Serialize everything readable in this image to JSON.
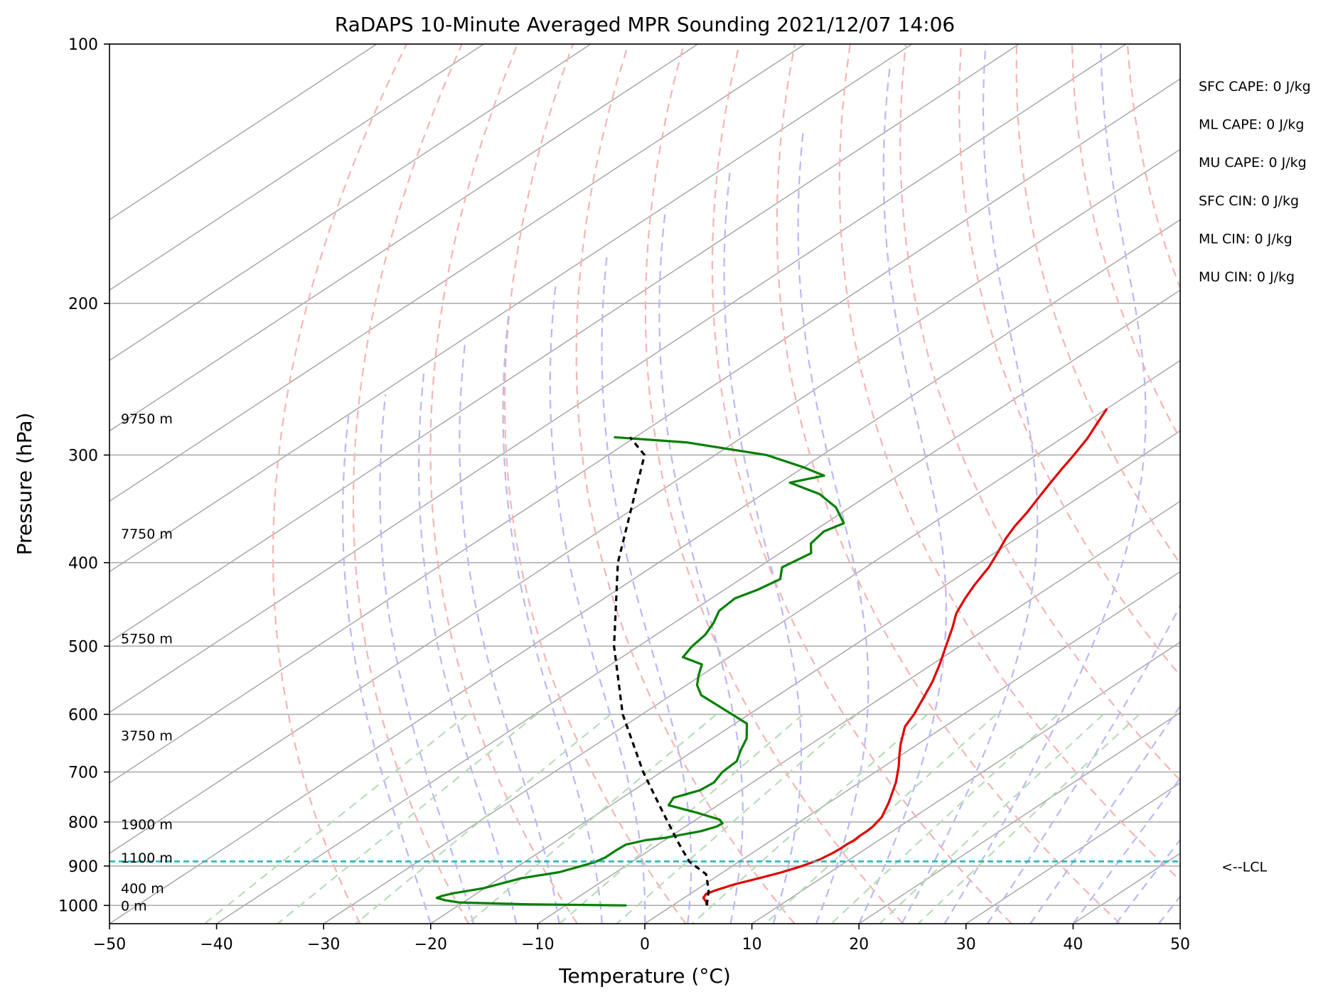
{
  "chart_data": {
    "type": "line",
    "title": "RaDAPS 10-Minute Averaged MPR Sounding 2021/12/07 14:06",
    "xlabel": "Temperature (°C)",
    "ylabel": "Pressure (hPa)",
    "xlim": [
      -50,
      50
    ],
    "ylim": [
      1050,
      100
    ],
    "y_scale": "log",
    "skew": "skew-T log-P",
    "grid": true,
    "x_ticks": [
      "−50",
      "−40",
      "−30",
      "−20",
      "−10",
      "0",
      "10",
      "20",
      "30",
      "40",
      "50"
    ],
    "y_ticks": [
      "100",
      "200",
      "300",
      "400",
      "500",
      "600",
      "700",
      "800",
      "900",
      "1000"
    ],
    "series": [
      {
        "key": "temperature",
        "color": "#e00000",
        "points": [
          [
            3.2,
            1000
          ],
          [
            2.6,
            990
          ],
          [
            1.8,
            980
          ],
          [
            1.5,
            970
          ],
          [
            1.9,
            960
          ],
          [
            2.8,
            945
          ],
          [
            4.2,
            930
          ],
          [
            5.5,
            915
          ],
          [
            6.5,
            900
          ],
          [
            7.2,
            885
          ],
          [
            7.5,
            870
          ],
          [
            7.6,
            860
          ],
          [
            7.6,
            850
          ],
          [
            7.7,
            840
          ],
          [
            7.6,
            830
          ],
          [
            7.6,
            820
          ],
          [
            7.5,
            810
          ],
          [
            7.0,
            790
          ],
          [
            5.6,
            760
          ],
          [
            3.4,
            720
          ],
          [
            1.4,
            690
          ],
          [
            -0.1,
            670
          ],
          [
            -1.6,
            650
          ],
          [
            -3.7,
            620
          ],
          [
            -4.6,
            600
          ],
          [
            -6.3,
            570
          ],
          [
            -7.5,
            550
          ],
          [
            -9.3,
            525
          ],
          [
            -11.3,
            500
          ],
          [
            -13.4,
            475
          ],
          [
            -15.0,
            458
          ],
          [
            -16.3,
            440
          ],
          [
            -17.3,
            425
          ],
          [
            -18.5,
            405
          ],
          [
            -19.7,
            390
          ],
          [
            -21.0,
            375
          ],
          [
            -21.9,
            363
          ],
          [
            -22.7,
            350
          ],
          [
            -23.6,
            338
          ],
          [
            -24.6,
            325
          ],
          [
            -25.6,
            312
          ],
          [
            -26.5,
            300
          ],
          [
            -27.6,
            287
          ],
          [
            -28.9,
            275
          ],
          [
            -30.0,
            265
          ]
        ]
      },
      {
        "key": "dewpoint",
        "color": "#008000",
        "points": [
          [
            -4.3,
            1000
          ],
          [
            -13.8,
            997
          ],
          [
            -20.4,
            992
          ],
          [
            -22.0,
            986
          ],
          [
            -23.1,
            980
          ],
          [
            -22.9,
            975
          ],
          [
            -22.2,
            968
          ],
          [
            -20.1,
            955
          ],
          [
            -18.0,
            930
          ],
          [
            -15.3,
            915
          ],
          [
            -14.1,
            900
          ],
          [
            -13.4,
            890
          ],
          [
            -13.1,
            880
          ],
          [
            -13.1,
            870
          ],
          [
            -13.1,
            862
          ],
          [
            -13.0,
            850
          ],
          [
            -11.8,
            840
          ],
          [
            -10.4,
            835
          ],
          [
            -7.9,
            820
          ],
          [
            -7.1,
            810
          ],
          [
            -7.0,
            803
          ],
          [
            -7.8,
            795
          ],
          [
            -11.0,
            780
          ],
          [
            -14.6,
            765
          ],
          [
            -15.2,
            750
          ],
          [
            -13.8,
            735
          ],
          [
            -13.6,
            720
          ],
          [
            -14.3,
            700
          ],
          [
            -14.5,
            680
          ],
          [
            -15.7,
            660
          ],
          [
            -16.8,
            640
          ],
          [
            -18.9,
            615
          ],
          [
            -27.2,
            570
          ],
          [
            -29.0,
            555
          ],
          [
            -30.3,
            540
          ],
          [
            -31.5,
            525
          ],
          [
            -34.3,
            515
          ],
          [
            -35.0,
            500
          ],
          [
            -35.4,
            485
          ],
          [
            -36.3,
            470
          ],
          [
            -37.5,
            455
          ],
          [
            -37.8,
            440
          ],
          [
            -36.9,
            430
          ],
          [
            -36.3,
            418
          ],
          [
            -37.8,
            405
          ],
          [
            -37.1,
            390
          ],
          [
            -38.5,
            380
          ],
          [
            -39.0,
            368
          ],
          [
            -38.3,
            360
          ],
          [
            -41.3,
            345
          ],
          [
            -44.7,
            333
          ],
          [
            -49.1,
            323
          ],
          [
            -46.9,
            317
          ],
          [
            -50.0,
            310
          ],
          [
            -55.2,
            300
          ],
          [
            -64.5,
            290
          ],
          [
            -72.0,
            286
          ]
        ]
      },
      {
        "key": "parcel",
        "color": "#000000",
        "dash": "8,6",
        "points": [
          [
            3.2,
            1000
          ],
          [
            1.2,
            960
          ],
          [
            -1.3,
            920
          ],
          [
            -4.7,
            889
          ],
          [
            -8.0,
            850
          ],
          [
            -14.1,
            780
          ],
          [
            -21.7,
            700
          ],
          [
            -31.8,
            600
          ],
          [
            -42.3,
            500
          ],
          [
            -53.8,
            400
          ],
          [
            -66.6,
            300
          ],
          [
            -70.5,
            286
          ]
        ]
      }
    ],
    "lcl": {
      "pressure": 889,
      "label": "<--LCL",
      "color": "#17b8b8"
    },
    "height_labels": [
      {
        "text": "0 m",
        "p": 1000
      },
      {
        "text": "400 m",
        "p": 955
      },
      {
        "text": "1100 m",
        "p": 880
      },
      {
        "text": "1900 m",
        "p": 805
      },
      {
        "text": "3750 m",
        "p": 635
      },
      {
        "text": "5750 m",
        "p": 490
      },
      {
        "text": "7750 m",
        "p": 370
      },
      {
        "text": "9750 m",
        "p": 272
      }
    ],
    "stats": [
      {
        "key": "sfc_cape",
        "text": "SFC CAPE: 0 J/kg"
      },
      {
        "key": "ml_cape",
        "text": "ML CAPE: 0 J/kg"
      },
      {
        "key": "mu_cape",
        "text": "MU CAPE: 0 J/kg"
      },
      {
        "key": "sfc_cin",
        "text": "SFC CIN: 0 J/kg"
      },
      {
        "key": "ml_cin",
        "text": "ML CIN: 0 J/kg"
      },
      {
        "key": "mu_cin",
        "text": "MU CIN: 0 J/kg"
      }
    ],
    "reference_lines": {
      "isotherm_color": "#a8a8a8",
      "dry_adiabat_color": "#f4b4b4",
      "moist_adiabat_color": "#b8b8f4",
      "mixing_ratio_color": "#b8dcb8"
    }
  }
}
